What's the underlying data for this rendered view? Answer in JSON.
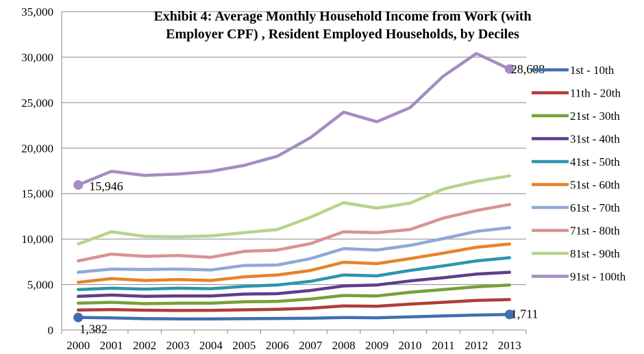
{
  "chart_data": {
    "type": "line",
    "title_line1": "Exhibit 4:  Average Monthly Household Income from Work (with",
    "title_line2": "Employer CPF) , Resident Employed Households, by Deciles",
    "x": [
      "2000",
      "2001",
      "2002",
      "2003",
      "2004",
      "2005",
      "2006",
      "2007",
      "2008",
      "2009",
      "2010",
      "2011",
      "2012",
      "2013"
    ],
    "ylim": [
      0,
      35000
    ],
    "yticks": [
      0,
      5000,
      10000,
      15000,
      20000,
      25000,
      30000,
      35000
    ],
    "ytick_labels": [
      "0",
      "5,000",
      "10,000",
      "15,000",
      "20,000",
      "25,000",
      "30,000",
      "35,000"
    ],
    "grid": true,
    "legend_position": "right",
    "series": [
      {
        "name": "1st - 10th",
        "color": "#3F6FB0",
        "values": [
          1382,
          1330,
          1250,
          1230,
          1230,
          1250,
          1270,
          1300,
          1380,
          1350,
          1450,
          1550,
          1650,
          1711
        ]
      },
      {
        "name": "11th - 20th",
        "color": "#B13C3A",
        "values": [
          2200,
          2250,
          2180,
          2150,
          2170,
          2220,
          2280,
          2400,
          2650,
          2620,
          2850,
          3050,
          3250,
          3350
        ]
      },
      {
        "name": "21st - 30th",
        "color": "#77A038",
        "values": [
          2950,
          3050,
          2900,
          2950,
          2950,
          3100,
          3150,
          3400,
          3800,
          3750,
          4150,
          4450,
          4750,
          4950
        ]
      },
      {
        "name": "31st - 40th",
        "color": "#5F3E8A",
        "values": [
          3700,
          3850,
          3700,
          3750,
          3750,
          3950,
          4000,
          4350,
          4850,
          4950,
          5400,
          5750,
          6150,
          6350
        ]
      },
      {
        "name": "41st - 50th",
        "color": "#2E94AE",
        "values": [
          4450,
          4600,
          4500,
          4600,
          4550,
          4800,
          4950,
          5350,
          6050,
          5950,
          6550,
          7050,
          7600,
          7950
        ]
      },
      {
        "name": "51st - 60th",
        "color": "#E8822C",
        "values": [
          5250,
          5650,
          5450,
          5550,
          5450,
          5850,
          6050,
          6550,
          7450,
          7300,
          7850,
          8450,
          9100,
          9450
        ]
      },
      {
        "name": "61st - 70th",
        "color": "#8EA9D6",
        "values": [
          6350,
          6700,
          6650,
          6700,
          6600,
          7100,
          7150,
          7850,
          8950,
          8800,
          9300,
          10050,
          10850,
          11250
        ]
      },
      {
        "name": "71st - 80th",
        "color": "#D89391",
        "values": [
          7600,
          8350,
          8100,
          8200,
          8000,
          8650,
          8800,
          9500,
          10800,
          10700,
          11050,
          12300,
          13150,
          13800
        ]
      },
      {
        "name": "81st - 90th",
        "color": "#B7D38C",
        "values": [
          9450,
          10800,
          10300,
          10250,
          10350,
          10700,
          11050,
          12400,
          14000,
          13400,
          13950,
          15500,
          16350,
          16950
        ]
      },
      {
        "name": "91st - 100th",
        "color": "#A48DC2",
        "values": [
          15946,
          17450,
          17000,
          17150,
          17450,
          18100,
          19100,
          21150,
          23950,
          22900,
          24450,
          27900,
          30400,
          28688
        ]
      }
    ],
    "point_labels": [
      {
        "series": 0,
        "index": 0,
        "text": "1,382"
      },
      {
        "series": 0,
        "index": 13,
        "text": "1,711"
      },
      {
        "series": 9,
        "index": 0,
        "text": "15,946"
      },
      {
        "series": 9,
        "index": 13,
        "text": "28,688"
      }
    ]
  }
}
